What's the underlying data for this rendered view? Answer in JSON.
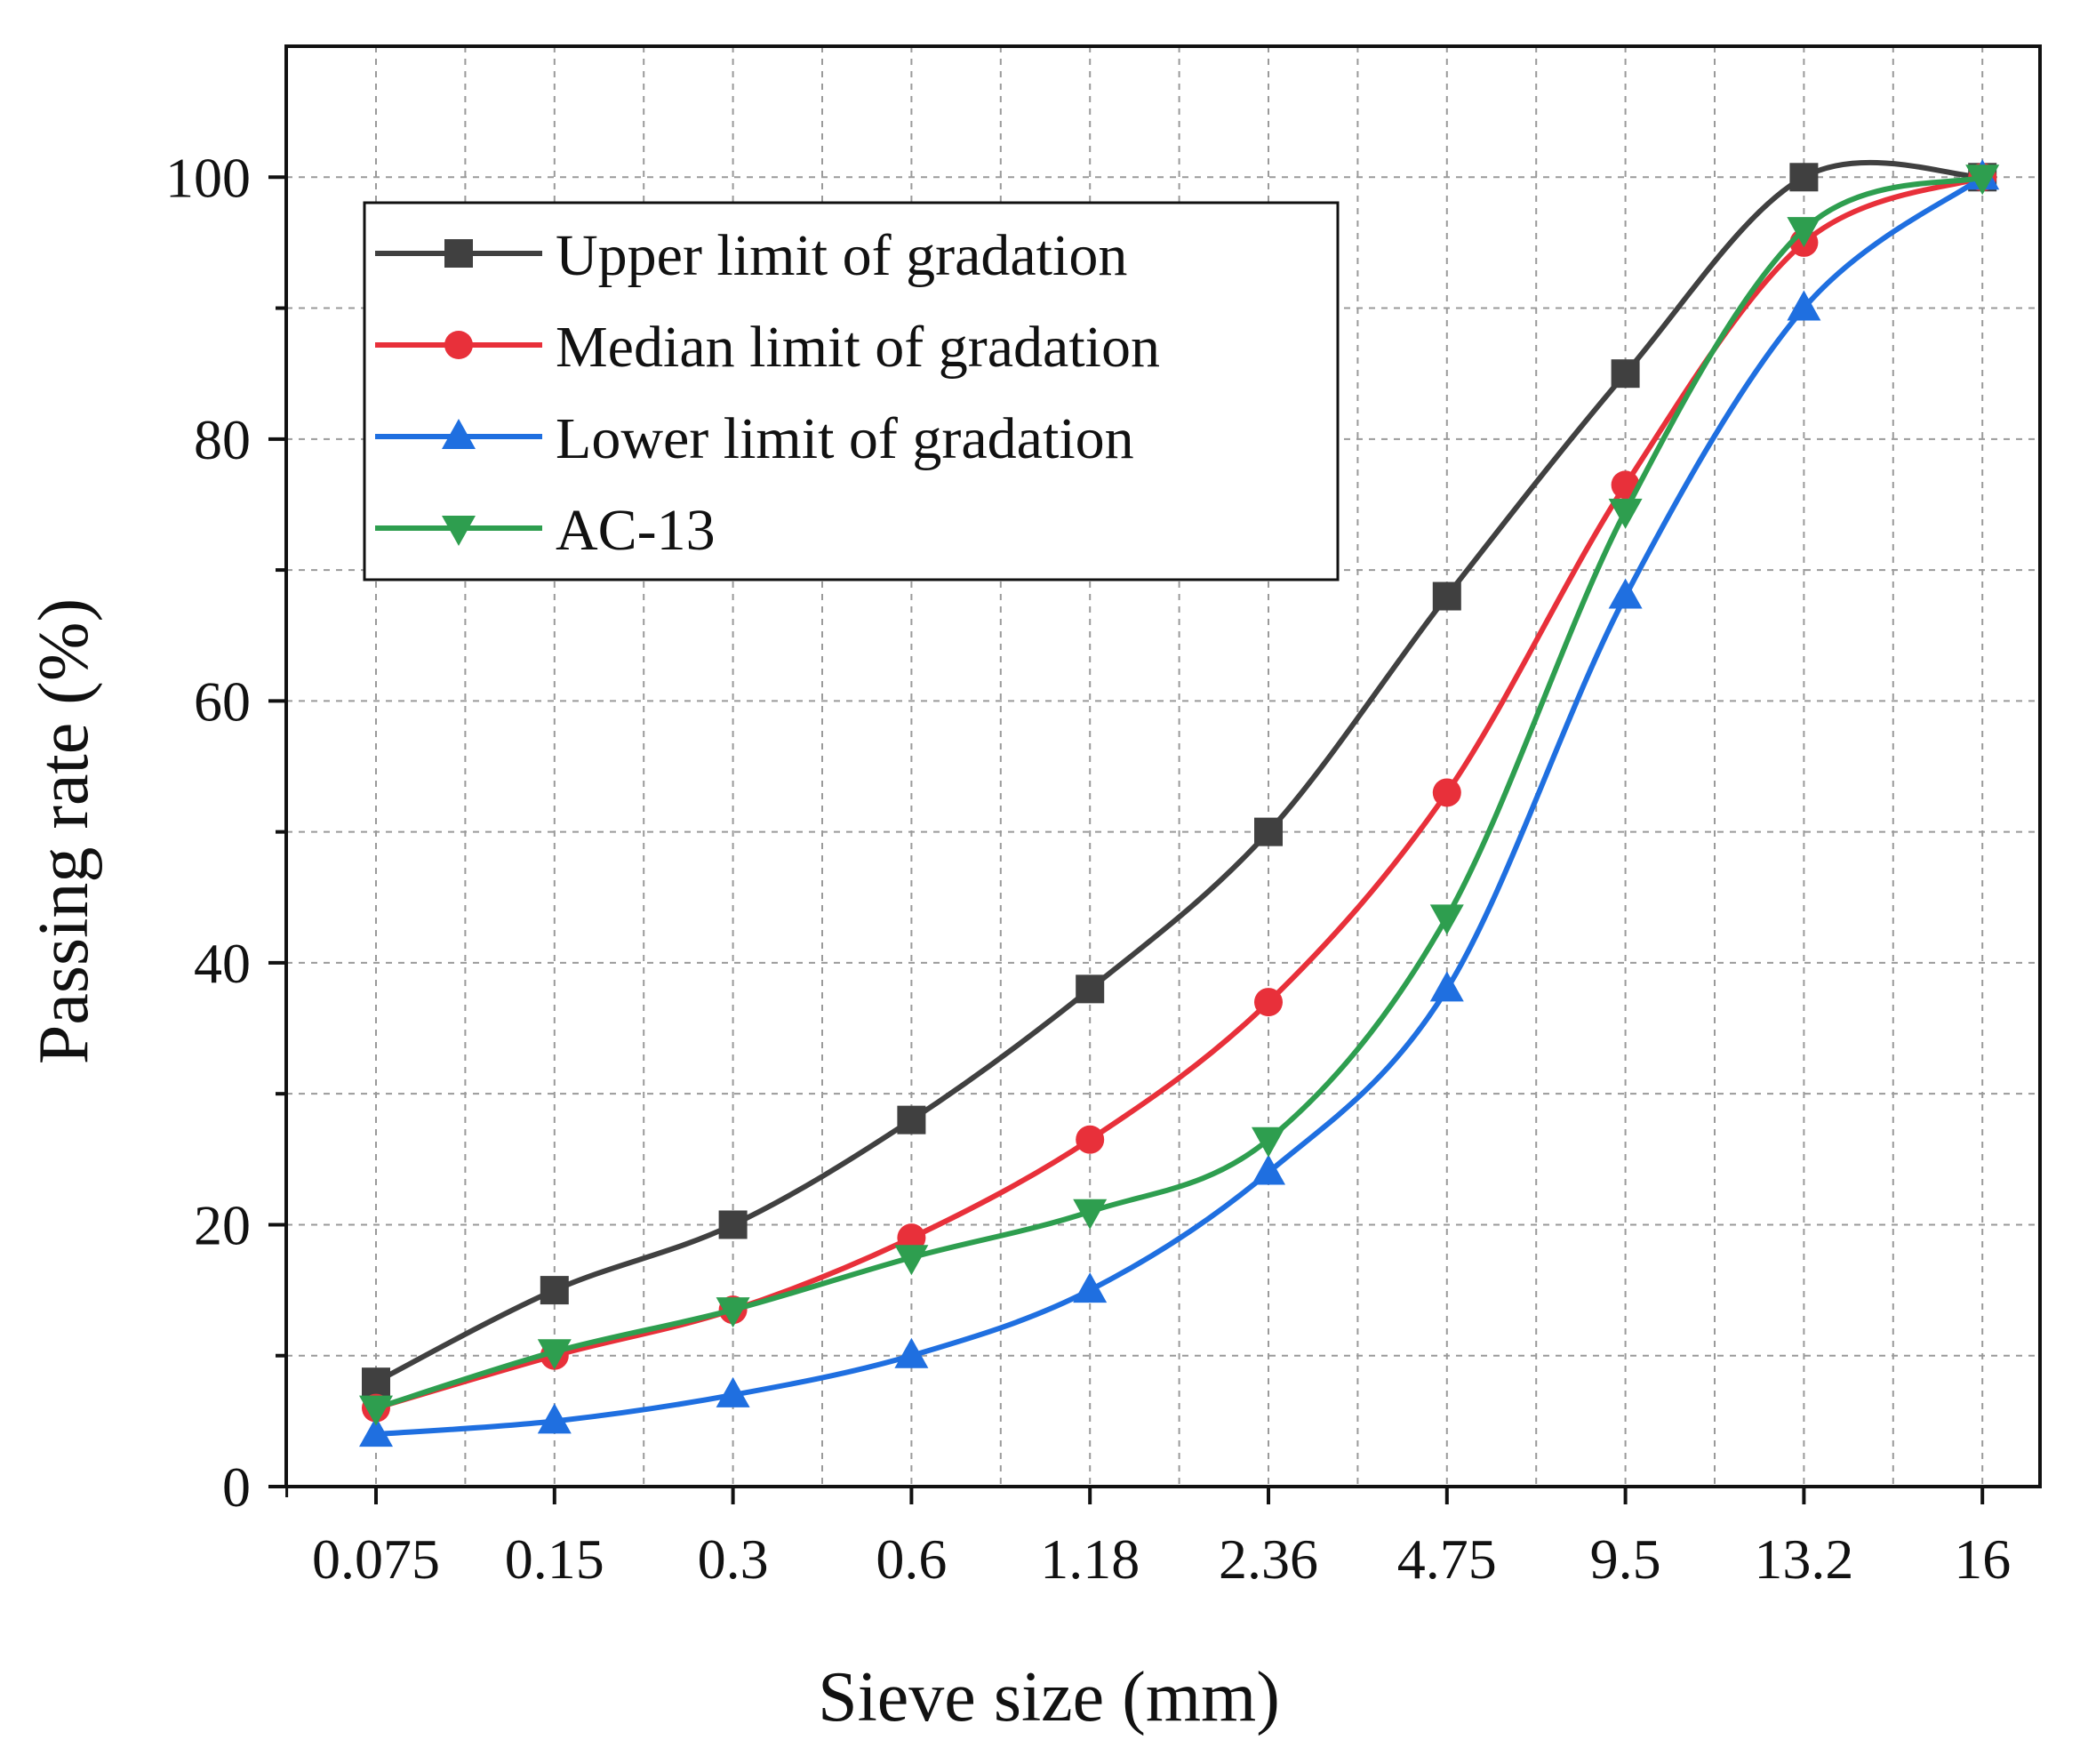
{
  "chart_data": {
    "type": "line",
    "title": "",
    "xlabel": "Sieve size (mm)",
    "ylabel": "Passing rate (%)",
    "categories": [
      "0.075",
      "0.15",
      "0.3",
      "0.6",
      "1.18",
      "2.36",
      "4.75",
      "9.5",
      "13.2",
      "16"
    ],
    "ylim": [
      0,
      110
    ],
    "yticks": [
      0,
      20,
      40,
      60,
      80,
      100
    ],
    "grid": true,
    "legend_position": "top-left",
    "series": [
      {
        "name": "Upper limit of gradation",
        "color": "#404040",
        "marker": "square",
        "values": [
          8,
          15,
          20,
          28,
          38,
          50,
          68,
          85,
          100,
          100
        ]
      },
      {
        "name": "Median limit of gradation",
        "color": "#e8303a",
        "marker": "circle",
        "values": [
          6,
          10,
          13.5,
          19,
          26.5,
          37,
          53,
          76.5,
          95,
          100
        ]
      },
      {
        "name": "Lower limit of gradation",
        "color": "#1f6fe0",
        "marker": "triangle-up",
        "values": [
          4,
          5,
          7,
          10,
          15,
          24,
          38,
          68,
          90,
          100
        ]
      },
      {
        "name": "AC-13",
        "color": "#2e9e4f",
        "marker": "triangle-down",
        "values": [
          6,
          10.3,
          13.5,
          17.5,
          21,
          26.5,
          43.5,
          74.5,
          96,
          100
        ]
      }
    ]
  }
}
